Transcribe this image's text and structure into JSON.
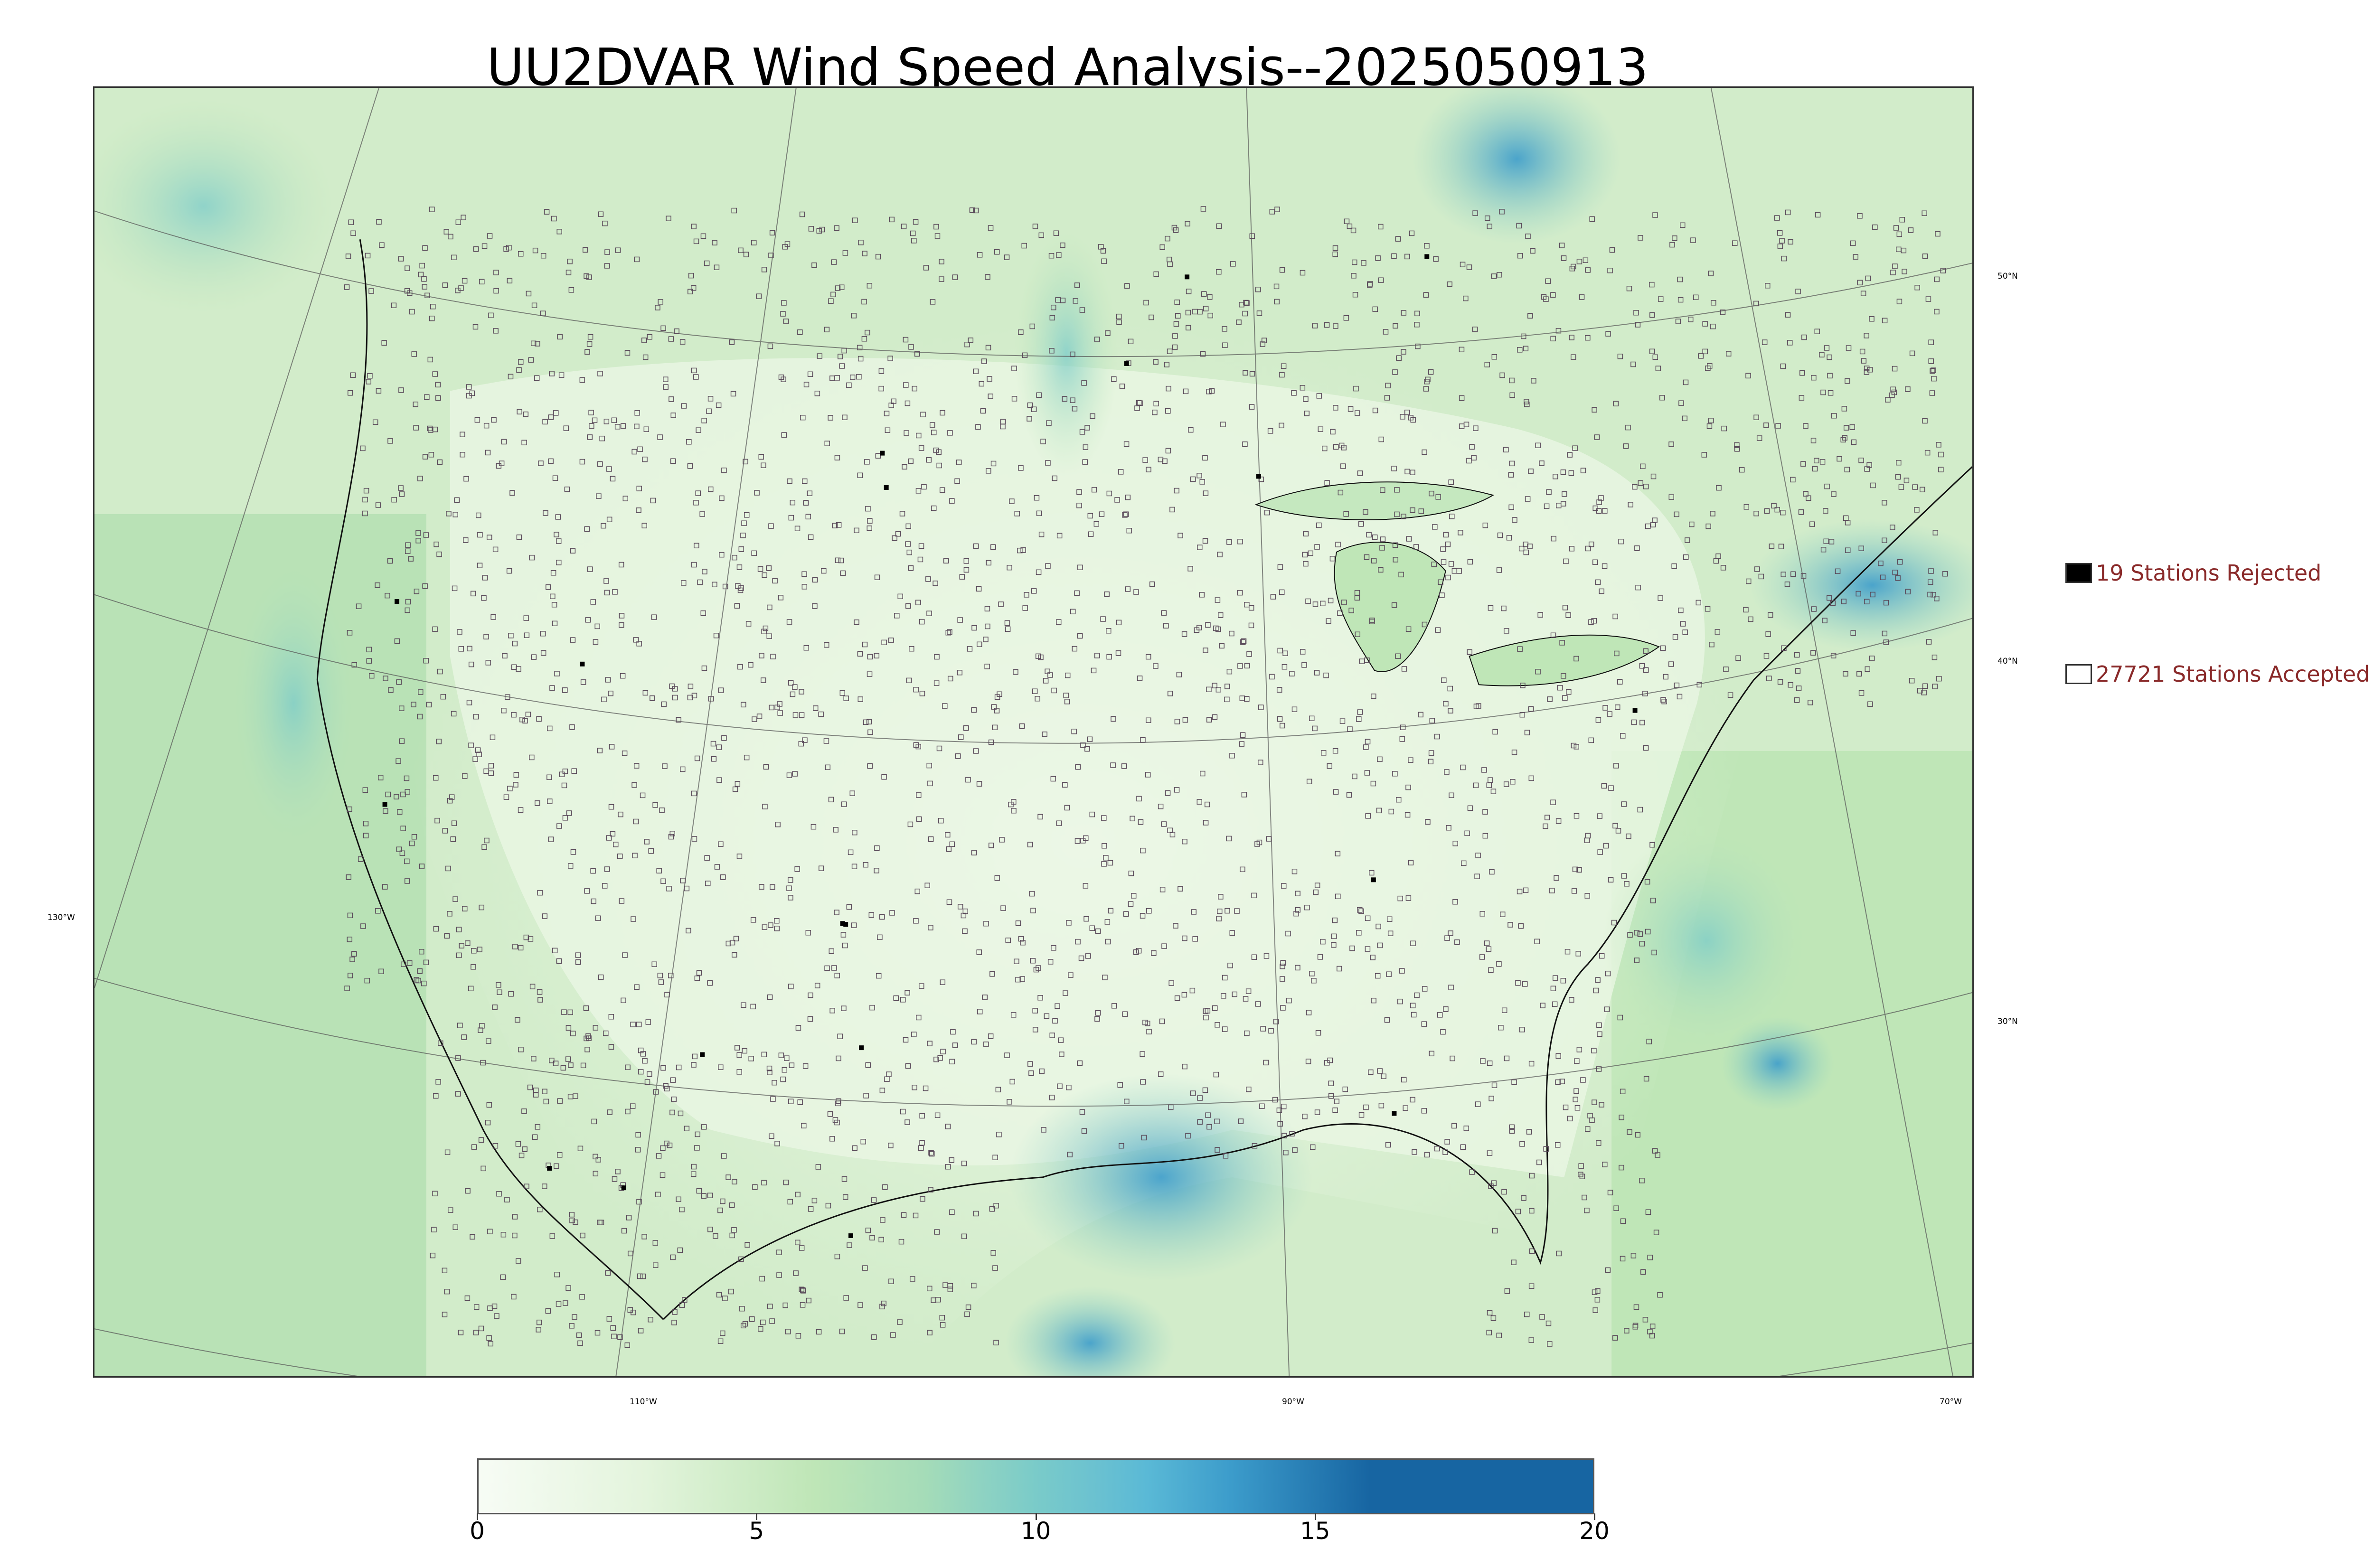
{
  "title": "UU2DVAR Wind Speed Analysis--2025050913",
  "map": {
    "variable": "wind speed",
    "lat_labels": [
      "50°N",
      "40°N",
      "30°N"
    ],
    "lon_labels": [
      "130°W",
      "110°W",
      "90°W",
      "70°W"
    ],
    "background_colors": {
      "low": "#f3faef",
      "mid": "#cde9c6",
      "high": "#4fb3d0",
      "max": "#1765a2"
    },
    "station_marker": "open-square",
    "rejected_marker": "filled-square"
  },
  "legend": {
    "rejected": {
      "label": "19 Stations Rejected",
      "count": 19,
      "color": "#000000"
    },
    "accepted": {
      "label": "27721 Stations Accepted",
      "count": 27721,
      "color": "#ffffff"
    },
    "text_color": "#8a2a2a"
  },
  "colorbar": {
    "min": 0,
    "max": 20,
    "ticks": [
      "0",
      "5",
      "10",
      "15",
      "20"
    ],
    "tick_values": [
      0,
      5,
      10,
      15,
      20
    ],
    "stops": [
      {
        "value": 0,
        "color": "#f7fcf5"
      },
      {
        "value": 3,
        "color": "#e3f4dc"
      },
      {
        "value": 6,
        "color": "#bfe6b7"
      },
      {
        "value": 8,
        "color": "#a5dcb8"
      },
      {
        "value": 9,
        "color": "#8fd3c2"
      },
      {
        "value": 10,
        "color": "#7acbc9"
      },
      {
        "value": 11,
        "color": "#6cc2d0"
      },
      {
        "value": 12,
        "color": "#5ab9d6"
      },
      {
        "value": 13.5,
        "color": "#3c9ccb"
      },
      {
        "value": 16,
        "color": "#1765a2"
      },
      {
        "value": 20,
        "color": "#1765a2"
      }
    ]
  }
}
